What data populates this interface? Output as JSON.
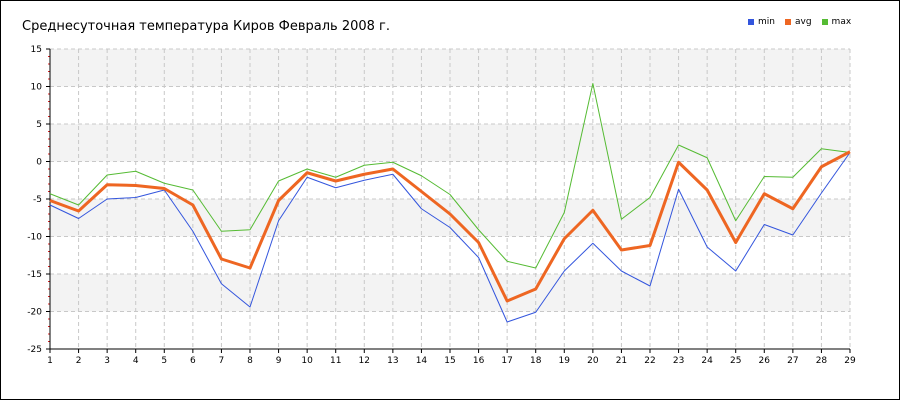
{
  "chart_data": {
    "type": "line",
    "title": "Среднесуточная температура Киров  Февраль 2008 г.",
    "xlabel": "",
    "ylabel": "",
    "x": [
      1,
      2,
      3,
      4,
      5,
      6,
      7,
      8,
      9,
      10,
      11,
      12,
      13,
      14,
      15,
      16,
      17,
      18,
      19,
      20,
      21,
      22,
      23,
      24,
      25,
      26,
      27,
      28,
      29
    ],
    "ylim": [
      -25,
      15
    ],
    "yticks": [
      15,
      10,
      5,
      0,
      -5,
      -10,
      -15,
      -20,
      -25
    ],
    "grid": true,
    "legend_position": "top-right",
    "series": [
      {
        "name": "min",
        "color": "#3355dd",
        "values": [
          -5.8,
          -7.6,
          -5.0,
          -4.8,
          -3.8,
          -9.3,
          -16.3,
          -19.4,
          -7.9,
          -2.1,
          -3.5,
          -2.5,
          -1.7,
          -6.3,
          -8.8,
          -12.8,
          -21.4,
          -20.1,
          -14.6,
          -10.9,
          -14.6,
          -16.6,
          -3.7,
          -11.4,
          -14.6,
          -8.4,
          -9.8,
          -4.2,
          1.2
        ]
      },
      {
        "name": "avg",
        "color": "#ee6622",
        "values": [
          -5.2,
          -6.6,
          -3.1,
          -3.2,
          -3.6,
          -5.8,
          -13.0,
          -14.2,
          -5.2,
          -1.5,
          -2.6,
          -1.7,
          -1.0,
          -4.0,
          -7.0,
          -10.8,
          -18.6,
          -17.0,
          -10.3,
          -6.5,
          -11.8,
          -11.2,
          -0.1,
          -3.8,
          -10.8,
          -4.3,
          -6.3,
          -0.7,
          1.3
        ]
      },
      {
        "name": "max",
        "color": "#55bb33",
        "values": [
          -4.3,
          -5.8,
          -1.8,
          -1.3,
          -2.9,
          -3.8,
          -9.3,
          -9.1,
          -2.6,
          -1.0,
          -2.1,
          -0.5,
          -0.1,
          -1.9,
          -4.4,
          -9.1,
          -13.3,
          -14.2,
          -6.8,
          10.4,
          -7.7,
          -4.8,
          2.2,
          0.5,
          -7.9,
          -2.0,
          -2.1,
          1.7,
          1.2
        ]
      }
    ]
  }
}
